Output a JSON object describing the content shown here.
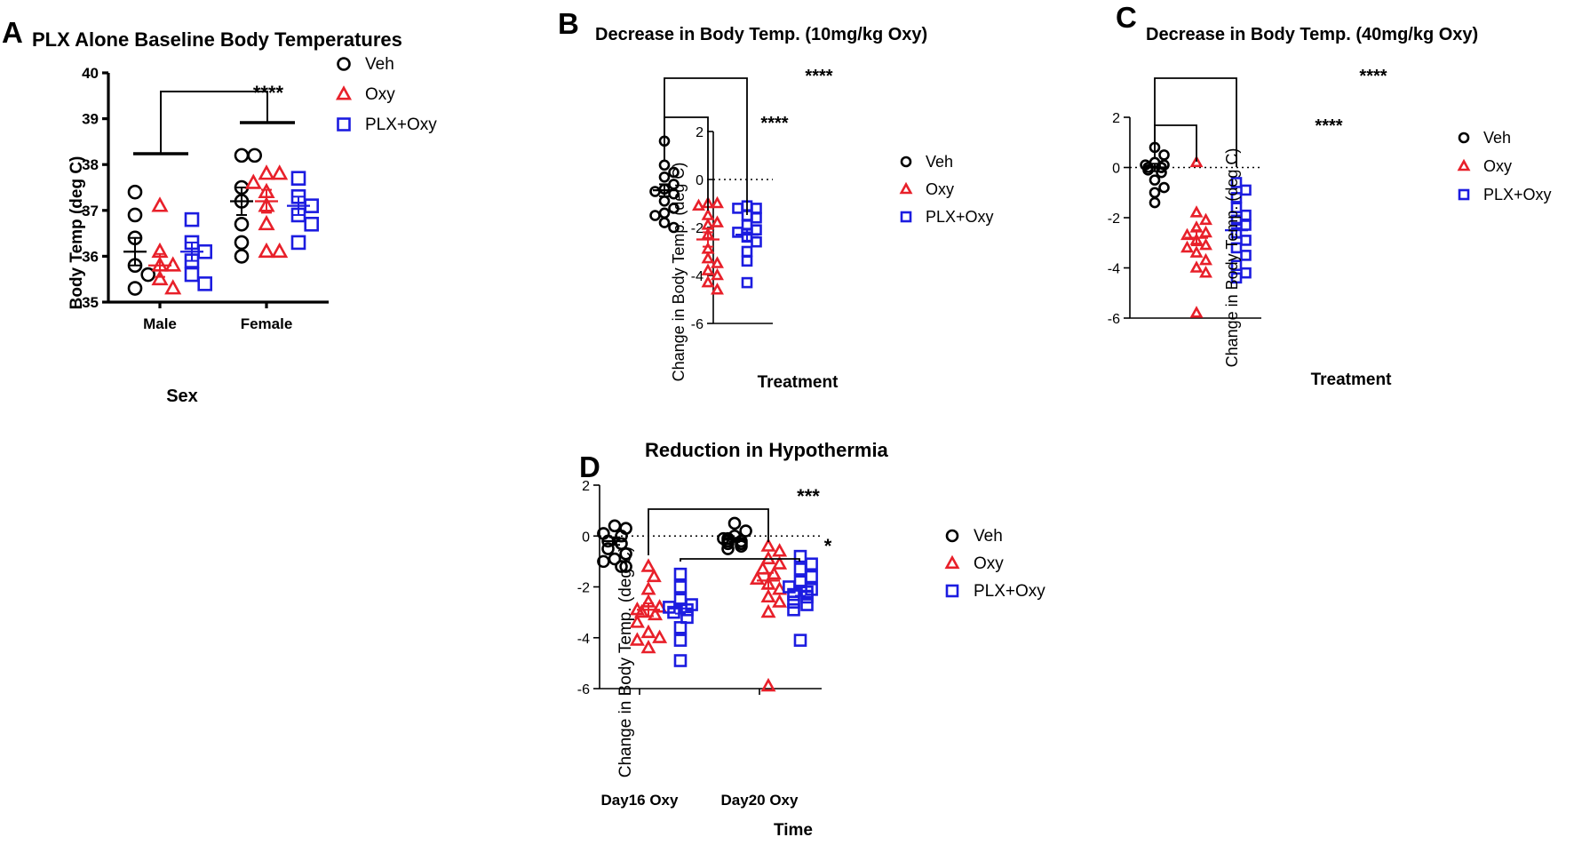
{
  "colors": {
    "veh": "#000000",
    "oxy": "#e8202a",
    "plx": "#1c1ce0"
  },
  "chart_data": [
    {
      "panel_label": "A",
      "type": "scatter",
      "title": "PLX Alone Baseline Body Temperatures",
      "xlabel": "Sex",
      "ylabel": "Body Temp (deg C)",
      "ylim": [
        35,
        40
      ],
      "yticks": [
        "35",
        "36",
        "37",
        "38",
        "39",
        "40"
      ],
      "categories": [
        "Male",
        "Female"
      ],
      "legend": [
        "Veh",
        "Oxy",
        "PLX+Oxy"
      ],
      "series": [
        {
          "name": "Veh",
          "marker": "circle",
          "groups": [
            {
              "category": "Male",
              "values": [
                37.4,
                36.9,
                36.4,
                35.8,
                35.6,
                35.3
              ],
              "mean": 36.1,
              "sem": 0.3
            },
            {
              "category": "Female",
              "values": [
                38.2,
                38.2,
                37.5,
                37.2,
                36.7,
                36.3,
                36.0
              ],
              "mean": 37.2,
              "sem": 0.3
            }
          ]
        },
        {
          "name": "Oxy",
          "marker": "triangle",
          "groups": [
            {
              "category": "Male",
              "values": [
                37.1,
                36.1,
                35.8,
                35.8,
                35.5,
                35.3
              ],
              "mean": 35.8,
              "sem": 0.25
            },
            {
              "category": "Female",
              "values": [
                37.8,
                37.8,
                37.6,
                37.4,
                37.1,
                36.7,
                36.1,
                36.1
              ],
              "mean": 37.2,
              "sem": 0.25
            }
          ]
        },
        {
          "name": "PLX+Oxy",
          "marker": "square",
          "groups": [
            {
              "category": "Male",
              "values": [
                36.8,
                36.3,
                36.1,
                35.9,
                35.6,
                35.4
              ],
              "mean": 36.1,
              "sem": 0.2
            },
            {
              "category": "Female",
              "values": [
                37.7,
                37.3,
                37.1,
                36.9,
                36.7,
                36.3
              ],
              "mean": 37.1,
              "sem": 0.2
            }
          ]
        }
      ],
      "annotations": [
        "****"
      ]
    },
    {
      "panel_label": "B",
      "type": "scatter",
      "title": "Decrease in Body Temp. (10mg/kg Oxy)",
      "xlabel": "Treatment",
      "ylabel": "Change in Body Temp. (deg C)",
      "ylim": [
        -6,
        2
      ],
      "yticks": [
        "-6",
        "-4",
        "-2",
        "0",
        "2"
      ],
      "legend": [
        "Veh",
        "Oxy",
        "PLX+Oxy"
      ],
      "series": [
        {
          "name": "Veh",
          "marker": "circle",
          "values": [
            1.6,
            0.6,
            0.3,
            0.1,
            -0.2,
            -0.4,
            -0.5,
            -0.6,
            -0.9,
            -1.2,
            -1.4,
            -1.5,
            -1.8,
            -2.0
          ],
          "mean": -0.45,
          "sem": 0.25
        },
        {
          "name": "Oxy",
          "marker": "triangle",
          "values": [
            -1.0,
            -1.0,
            -1.1,
            -1.5,
            -1.8,
            -1.9,
            -2.3,
            -2.9,
            -3.3,
            -3.5,
            -3.8,
            -4.0,
            -4.3,
            -4.6
          ],
          "mean": -2.5,
          "sem": 0.3
        },
        {
          "name": "PLX+Oxy",
          "marker": "square",
          "values": [
            -1.1,
            -1.2,
            -1.2,
            -1.5,
            -1.6,
            -1.9,
            -2.1,
            -2.2,
            -2.4,
            -2.6,
            -3.0,
            -3.4,
            -4.3
          ],
          "mean": -2.3,
          "sem": 0.25
        }
      ],
      "annotations": [
        "****",
        "****"
      ]
    },
    {
      "panel_label": "C",
      "type": "scatter",
      "title": "Decrease in Body Temp. (40mg/kg Oxy)",
      "xlabel": "Treatment",
      "ylabel": "Change in Body Temp. (deg C)",
      "ylim": [
        -6,
        2
      ],
      "yticks": [
        "-6",
        "-4",
        "-2",
        "0",
        "2"
      ],
      "legend": [
        "Veh",
        "Oxy",
        "PLX+Oxy"
      ],
      "series": [
        {
          "name": "Veh",
          "marker": "circle",
          "values": [
            0.8,
            0.5,
            0.2,
            0.1,
            0.1,
            0.0,
            0.0,
            0.0,
            -0.1,
            -0.2,
            -0.5,
            -0.8,
            -1.0,
            -1.4
          ],
          "mean": 0.0,
          "sem": 0.15
        },
        {
          "name": "Oxy",
          "marker": "triangle",
          "values": [
            0.2,
            -1.8,
            -2.1,
            -2.4,
            -2.6,
            -2.7,
            -2.9,
            -3.1,
            -3.2,
            -3.4,
            -3.7,
            -4.0,
            -4.2,
            -5.8
          ],
          "mean": -2.8,
          "sem": 0.3
        },
        {
          "name": "PLX+Oxy",
          "marker": "square",
          "values": [
            -0.6,
            -0.9,
            -1.2,
            -1.6,
            -1.9,
            -2.1,
            -2.3,
            -2.6,
            -2.9,
            -3.2,
            -3.5,
            -3.9,
            -4.2,
            -4.4
          ],
          "mean": -2.5,
          "sem": 0.3
        }
      ],
      "annotations": [
        "****",
        "****"
      ]
    },
    {
      "panel_label": "D",
      "type": "scatter",
      "title": "Reduction in Hypothermia",
      "xlabel": "Time",
      "ylabel": "Change in Body Temp. (deg C)",
      "ylim": [
        -6,
        2
      ],
      "yticks": [
        "-6",
        "-4",
        "-2",
        "0",
        "2"
      ],
      "categories": [
        "Day16 Oxy",
        "Day20 Oxy"
      ],
      "legend": [
        "Veh",
        "Oxy",
        "PLX+Oxy"
      ],
      "series": [
        {
          "name": "Veh",
          "marker": "circle",
          "groups": [
            {
              "category": "Day16 Oxy",
              "values": [
                0.4,
                0.3,
                0.1,
                0.0,
                -0.2,
                -0.3,
                -0.5,
                -0.7,
                -0.9,
                -1.0,
                -1.2,
                -1.2
              ],
              "mean": -0.2,
              "sem": 0.15
            },
            {
              "category": "Day20 Oxy",
              "values": [
                0.5,
                0.2,
                0.0,
                -0.1,
                -0.1,
                -0.2,
                -0.2,
                -0.3,
                -0.3,
                -0.4,
                -0.5
              ],
              "mean": -0.15,
              "sem": 0.08
            }
          ]
        },
        {
          "name": "Oxy",
          "marker": "triangle",
          "groups": [
            {
              "category": "Day16 Oxy",
              "values": [
                -1.2,
                -1.6,
                -2.1,
                -2.6,
                -2.8,
                -2.9,
                -3.0,
                -3.1,
                -3.4,
                -3.8,
                -4.0,
                -4.1,
                -4.4
              ],
              "mean": -2.9,
              "sem": 0.25
            },
            {
              "category": "Day20 Oxy",
              "values": [
                -0.4,
                -0.6,
                -0.9,
                -1.1,
                -1.3,
                -1.5,
                -1.7,
                -1.9,
                -2.1,
                -2.4,
                -2.6,
                -3.0,
                -5.9
              ],
              "mean": -1.75,
              "sem": 0.3
            }
          ]
        },
        {
          "name": "PLX+Oxy",
          "marker": "square",
          "groups": [
            {
              "category": "Day16 Oxy",
              "values": [
                -1.5,
                -2.0,
                -2.5,
                -2.7,
                -2.8,
                -2.9,
                -3.0,
                -3.2,
                -3.6,
                -4.1,
                -4.9
              ],
              "mean": -2.85,
              "sem": 0.2
            },
            {
              "category": "Day20 Oxy",
              "values": [
                -0.8,
                -1.1,
                -1.3,
                -1.6,
                -1.8,
                -2.0,
                -2.1,
                -2.2,
                -2.3,
                -2.4,
                -2.6,
                -2.7,
                -2.9,
                -4.1
              ],
              "mean": -2.15,
              "sem": 0.2
            }
          ]
        }
      ],
      "annotations": [
        "***",
        "*"
      ]
    }
  ]
}
